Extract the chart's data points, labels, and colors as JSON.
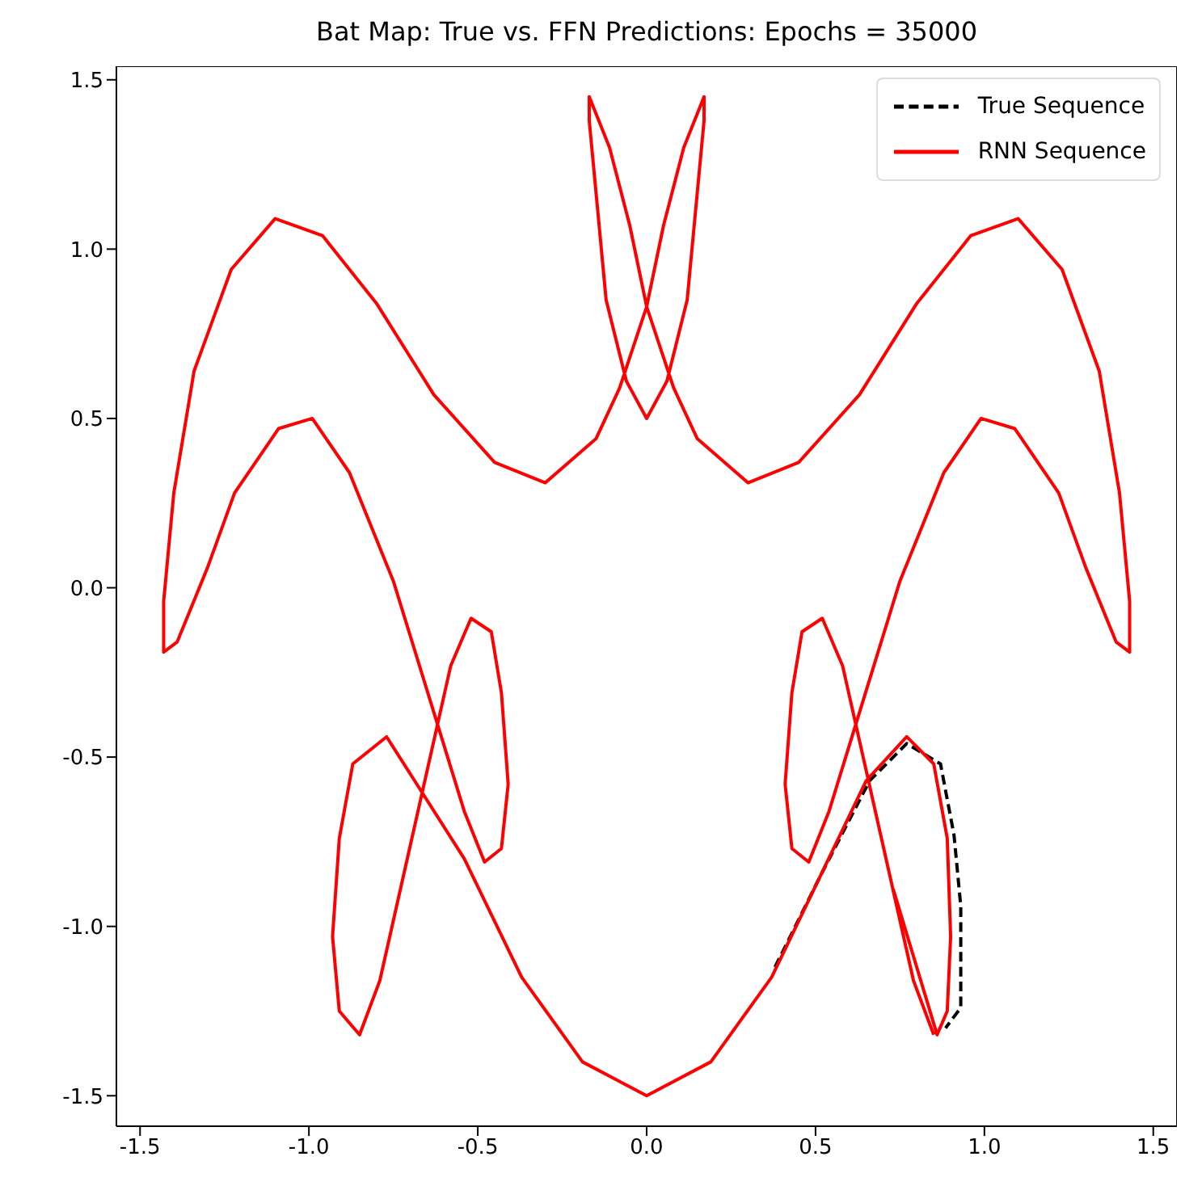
{
  "chart_data": {
    "type": "line",
    "title": "Bat Map: True vs. FFN Predictions: Epochs = 35000",
    "xlim": [
      -1.57,
      1.57
    ],
    "ylim": [
      -1.59,
      1.54
    ],
    "xticks": [
      -1.5,
      {
        "value": -1,
        "label": "-1.0"
      },
      -0.5,
      {
        "value": 0,
        "label": "0.0"
      },
      0.5,
      {
        "value": 1,
        "label": "1.0"
      },
      1.5
    ],
    "yticks": [
      -1.5,
      {
        "value": -1,
        "label": "-1.0"
      },
      -0.5,
      {
        "value": 0,
        "label": "0.0"
      },
      0.5,
      {
        "value": 1,
        "label": "1.0"
      },
      1.5
    ],
    "legend": "top right",
    "series": [
      {
        "name": "True Sequence",
        "color": "#000000",
        "line_style": "dashed",
        "x": [
          0.38,
          0.52,
          0.66,
          0.77,
          0.87,
          0.91,
          0.93,
          0.93,
          0.885
        ],
        "values": [
          -1.12,
          -0.84,
          -0.57,
          -0.46,
          -0.52,
          -0.73,
          -0.94,
          -1.24,
          -1.3
        ]
      },
      {
        "name": "RNN Sequence",
        "color": "#ff0000",
        "line_style": "solid",
        "x": [
          0.85,
          0.79,
          0.58,
          0.52,
          0.46,
          0.43,
          0.41,
          0.43,
          0.48,
          0.54,
          0.75,
          0.88,
          0.99,
          1.09,
          1.22,
          1.3,
          1.39,
          1.43,
          1.43,
          1.4,
          1.34,
          1.23,
          1.1,
          0.96,
          0.8,
          0.63,
          0.45,
          0.3,
          0.15,
          0.08,
          0,
          -0.05,
          -0.11,
          -0.17,
          -0.17,
          -0.12,
          -0.06,
          0,
          0.06,
          0.12,
          0.17,
          0.17,
          0.11,
          0.05,
          0,
          -0.08,
          -0.15,
          -0.3,
          -0.45,
          -0.63,
          -0.8,
          -0.96,
          -1.1,
          -1.23,
          -1.34,
          -1.4,
          -1.43,
          -1.43,
          -1.39,
          -1.3,
          -1.22,
          -1.09,
          -0.99,
          -0.88,
          -0.75,
          -0.54,
          -0.48,
          -0.43,
          -0.41,
          -0.43,
          -0.46,
          -0.52,
          -0.58,
          -0.79,
          -0.85,
          -0.91,
          -0.93,
          -0.91,
          -0.87,
          -0.77,
          -0.54,
          -0.37,
          -0.19,
          0,
          0.19,
          0.37,
          0.65,
          0.77,
          0.85,
          0.89,
          0.9,
          0.89,
          0.86,
          0.73
        ],
        "values": [
          -1.32,
          -1.16,
          -0.23,
          -0.09,
          -0.13,
          -0.31,
          -0.58,
          -0.77,
          -0.81,
          -0.66,
          0.02,
          0.34,
          0.5,
          0.47,
          0.28,
          0.06,
          -0.16,
          -0.19,
          -0.04,
          0.28,
          0.64,
          0.94,
          1.09,
          1.04,
          0.84,
          0.57,
          0.37,
          0.31,
          0.44,
          0.59,
          0.83,
          1.07,
          1.3,
          1.45,
          1.38,
          0.85,
          0.61,
          0.5,
          0.61,
          0.85,
          1.38,
          1.45,
          1.3,
          1.07,
          0.83,
          0.59,
          0.44,
          0.31,
          0.37,
          0.57,
          0.84,
          1.04,
          1.09,
          0.94,
          0.64,
          0.28,
          -0.04,
          -0.19,
          -0.16,
          0.06,
          0.28,
          0.47,
          0.5,
          0.34,
          0.02,
          -0.66,
          -0.81,
          -0.77,
          -0.58,
          -0.31,
          -0.13,
          -0.09,
          -0.23,
          -1.16,
          -1.32,
          -1.25,
          -1.03,
          -0.74,
          -0.52,
          -0.44,
          -0.8,
          -1.15,
          -1.4,
          -1.5,
          -1.4,
          -1.15,
          -0.57,
          -0.44,
          -0.52,
          -0.74,
          -1.03,
          -1.25,
          -1.32,
          -0.89
        ]
      }
    ]
  }
}
